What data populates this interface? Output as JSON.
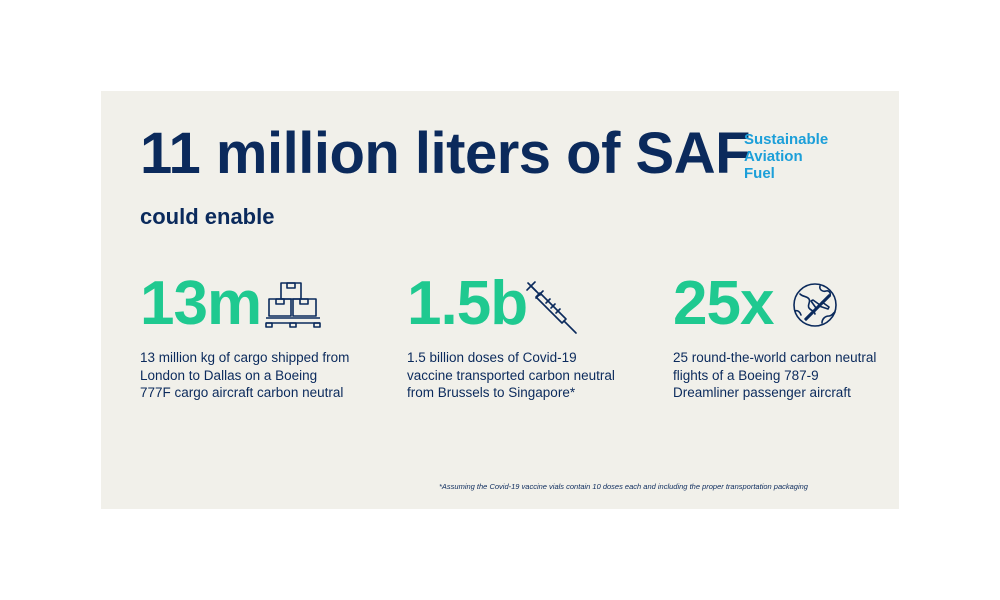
{
  "headline": "11 million liters of SAF",
  "saf_definition": [
    "Sustainable",
    "Aviation",
    "Fuel"
  ],
  "subheadline": "could enable",
  "stats": [
    {
      "value": "13m",
      "icon": "cargo-pallet-icon",
      "description": "13 million kg of cargo shipped from London to Dallas on a Boeing 777F cargo aircraft carbon neutral"
    },
    {
      "value": "1.5b",
      "icon": "syringe-icon",
      "description": "1.5 billion doses of Covid-19 vaccine transported carbon neutral from Brussels to Singapore*"
    },
    {
      "value": "25x",
      "icon": "globe-plane-icon",
      "description": "25 round-the-world carbon neutral flights of a Boeing 787-9 Dreamliner passenger aircraft"
    }
  ],
  "footnote": "*Assuming the Covid-19 vaccine vials contain 10 doses each and including the proper transportation packaging",
  "colors": {
    "navy": "#0b2a5c",
    "green": "#1fc990",
    "blue": "#1c9fd9",
    "panel_background": "#f1f0ea"
  }
}
